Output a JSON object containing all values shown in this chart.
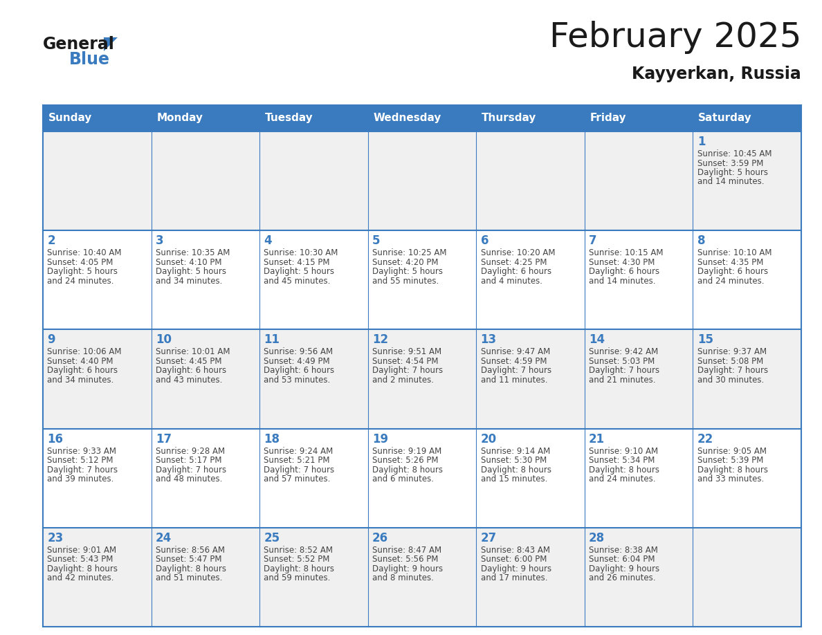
{
  "title": "February 2025",
  "subtitle": "Kayyerkan, Russia",
  "days_of_week": [
    "Sunday",
    "Monday",
    "Tuesday",
    "Wednesday",
    "Thursday",
    "Friday",
    "Saturday"
  ],
  "header_bg": "#3a7bbf",
  "header_text": "#ffffff",
  "row_bg_odd": "#f0f0f0",
  "row_bg_even": "#ffffff",
  "border_color": "#3a7bbf",
  "day_number_color": "#3a7bbf",
  "info_color": "#444444",
  "calendar": [
    [
      null,
      null,
      null,
      null,
      null,
      null,
      {
        "day": "1",
        "sunrise": "10:45 AM",
        "sunset": "3:59 PM",
        "daylight": "5 hours",
        "daylight2": "and 14 minutes."
      }
    ],
    [
      {
        "day": "2",
        "sunrise": "10:40 AM",
        "sunset": "4:05 PM",
        "daylight": "5 hours",
        "daylight2": "and 24 minutes."
      },
      {
        "day": "3",
        "sunrise": "10:35 AM",
        "sunset": "4:10 PM",
        "daylight": "5 hours",
        "daylight2": "and 34 minutes."
      },
      {
        "day": "4",
        "sunrise": "10:30 AM",
        "sunset": "4:15 PM",
        "daylight": "5 hours",
        "daylight2": "and 45 minutes."
      },
      {
        "day": "5",
        "sunrise": "10:25 AM",
        "sunset": "4:20 PM",
        "daylight": "5 hours",
        "daylight2": "and 55 minutes."
      },
      {
        "day": "6",
        "sunrise": "10:20 AM",
        "sunset": "4:25 PM",
        "daylight": "6 hours",
        "daylight2": "and 4 minutes."
      },
      {
        "day": "7",
        "sunrise": "10:15 AM",
        "sunset": "4:30 PM",
        "daylight": "6 hours",
        "daylight2": "and 14 minutes."
      },
      {
        "day": "8",
        "sunrise": "10:10 AM",
        "sunset": "4:35 PM",
        "daylight": "6 hours",
        "daylight2": "and 24 minutes."
      }
    ],
    [
      {
        "day": "9",
        "sunrise": "10:06 AM",
        "sunset": "4:40 PM",
        "daylight": "6 hours",
        "daylight2": "and 34 minutes."
      },
      {
        "day": "10",
        "sunrise": "10:01 AM",
        "sunset": "4:45 PM",
        "daylight": "6 hours",
        "daylight2": "and 43 minutes."
      },
      {
        "day": "11",
        "sunrise": "9:56 AM",
        "sunset": "4:49 PM",
        "daylight": "6 hours",
        "daylight2": "and 53 minutes."
      },
      {
        "day": "12",
        "sunrise": "9:51 AM",
        "sunset": "4:54 PM",
        "daylight": "7 hours",
        "daylight2": "and 2 minutes."
      },
      {
        "day": "13",
        "sunrise": "9:47 AM",
        "sunset": "4:59 PM",
        "daylight": "7 hours",
        "daylight2": "and 11 minutes."
      },
      {
        "day": "14",
        "sunrise": "9:42 AM",
        "sunset": "5:03 PM",
        "daylight": "7 hours",
        "daylight2": "and 21 minutes."
      },
      {
        "day": "15",
        "sunrise": "9:37 AM",
        "sunset": "5:08 PM",
        "daylight": "7 hours",
        "daylight2": "and 30 minutes."
      }
    ],
    [
      {
        "day": "16",
        "sunrise": "9:33 AM",
        "sunset": "5:12 PM",
        "daylight": "7 hours",
        "daylight2": "and 39 minutes."
      },
      {
        "day": "17",
        "sunrise": "9:28 AM",
        "sunset": "5:17 PM",
        "daylight": "7 hours",
        "daylight2": "and 48 minutes."
      },
      {
        "day": "18",
        "sunrise": "9:24 AM",
        "sunset": "5:21 PM",
        "daylight": "7 hours",
        "daylight2": "and 57 minutes."
      },
      {
        "day": "19",
        "sunrise": "9:19 AM",
        "sunset": "5:26 PM",
        "daylight": "8 hours",
        "daylight2": "and 6 minutes."
      },
      {
        "day": "20",
        "sunrise": "9:14 AM",
        "sunset": "5:30 PM",
        "daylight": "8 hours",
        "daylight2": "and 15 minutes."
      },
      {
        "day": "21",
        "sunrise": "9:10 AM",
        "sunset": "5:34 PM",
        "daylight": "8 hours",
        "daylight2": "and 24 minutes."
      },
      {
        "day": "22",
        "sunrise": "9:05 AM",
        "sunset": "5:39 PM",
        "daylight": "8 hours",
        "daylight2": "and 33 minutes."
      }
    ],
    [
      {
        "day": "23",
        "sunrise": "9:01 AM",
        "sunset": "5:43 PM",
        "daylight": "8 hours",
        "daylight2": "and 42 minutes."
      },
      {
        "day": "24",
        "sunrise": "8:56 AM",
        "sunset": "5:47 PM",
        "daylight": "8 hours",
        "daylight2": "and 51 minutes."
      },
      {
        "day": "25",
        "sunrise": "8:52 AM",
        "sunset": "5:52 PM",
        "daylight": "8 hours",
        "daylight2": "and 59 minutes."
      },
      {
        "day": "26",
        "sunrise": "8:47 AM",
        "sunset": "5:56 PM",
        "daylight": "9 hours",
        "daylight2": "and 8 minutes."
      },
      {
        "day": "27",
        "sunrise": "8:43 AM",
        "sunset": "6:00 PM",
        "daylight": "9 hours",
        "daylight2": "and 17 minutes."
      },
      {
        "day": "28",
        "sunrise": "8:38 AM",
        "sunset": "6:04 PM",
        "daylight": "9 hours",
        "daylight2": "and 26 minutes."
      },
      null
    ]
  ]
}
